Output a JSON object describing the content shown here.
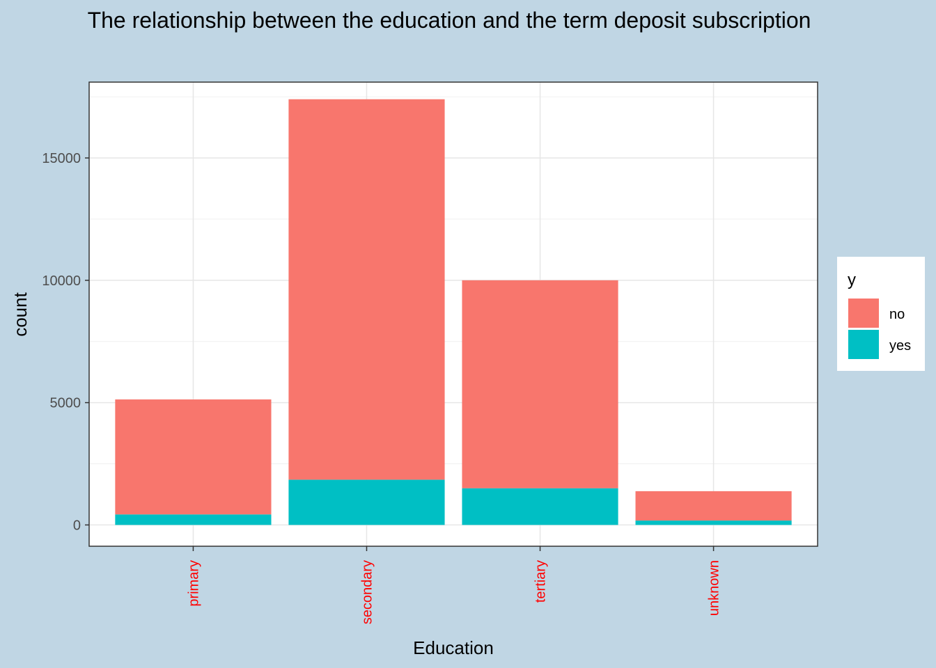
{
  "chart_data": {
    "type": "bar",
    "stacked": true,
    "title": "The relationship between the education and the term deposit subscription",
    "xlabel": "Education",
    "ylabel": "count",
    "categories": [
      "primary",
      "secondary",
      "tertiary",
      "unknown"
    ],
    "series": [
      {
        "name": "no",
        "color": "#F8766D",
        "values": [
          4700,
          15550,
          8500,
          1200
        ]
      },
      {
        "name": "yes",
        "color": "#00BFC4",
        "values": [
          430,
          1850,
          1500,
          180
        ]
      }
    ],
    "ylim": [
      -870,
      18100
    ],
    "yticks": [
      0,
      5000,
      10000,
      15000
    ],
    "ytick_labels": [
      "0",
      "5000",
      "10000",
      "15000"
    ],
    "grid": true,
    "legend": {
      "title": "y",
      "position": "right",
      "entries": [
        "no",
        "yes"
      ]
    },
    "xtick_color": "#FF0000"
  }
}
